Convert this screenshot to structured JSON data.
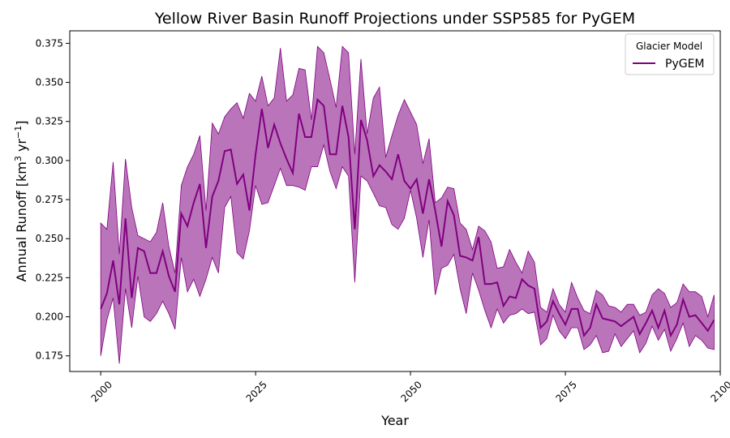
{
  "chart_data": {
    "type": "line",
    "title": "Yellow River Basin Runoff Projections under SSP585 for PyGEM",
    "xlabel": "Year",
    "ylabel_main": "Annual Runoff [km",
    "ylabel_sup1": "3",
    "ylabel_mid": " yr",
    "ylabel_sup2": "−1",
    "ylabel_end": "]",
    "xlim": [
      1995,
      2100
    ],
    "ylim": [
      0.165,
      0.383
    ],
    "x_ticks": [
      2000,
      2025,
      2050,
      2075,
      2100
    ],
    "y_ticks": [
      0.175,
      0.2,
      0.225,
      0.25,
      0.275,
      0.3,
      0.325,
      0.35,
      0.375
    ],
    "y_tick_labels": [
      "0.175",
      "0.200",
      "0.225",
      "0.250",
      "0.275",
      "0.300",
      "0.325",
      "0.350",
      "0.375"
    ],
    "grid": false,
    "legend": {
      "title": "Glacier Model",
      "placement": "top-right",
      "entries": [
        "PyGEM"
      ]
    },
    "series": [
      {
        "name": "PyGEM",
        "color": "#800080",
        "band_color": "#a040a0",
        "x": [
          2000,
          2001,
          2002,
          2003,
          2004,
          2005,
          2006,
          2007,
          2008,
          2009,
          2010,
          2011,
          2012,
          2013,
          2014,
          2015,
          2016,
          2017,
          2018,
          2019,
          2020,
          2021,
          2022,
          2023,
          2024,
          2025,
          2026,
          2027,
          2028,
          2029,
          2030,
          2031,
          2032,
          2033,
          2034,
          2035,
          2036,
          2037,
          2038,
          2039,
          2040,
          2041,
          2042,
          2043,
          2044,
          2045,
          2046,
          2047,
          2048,
          2049,
          2050,
          2051,
          2052,
          2053,
          2054,
          2055,
          2056,
          2057,
          2058,
          2059,
          2060,
          2061,
          2062,
          2063,
          2064,
          2065,
          2066,
          2067,
          2068,
          2069,
          2070,
          2071,
          2072,
          2073,
          2074,
          2075,
          2076,
          2077,
          2078,
          2079,
          2080,
          2081,
          2082,
          2083,
          2084,
          2085,
          2086,
          2087,
          2088,
          2089,
          2090,
          2091,
          2092,
          2093,
          2094,
          2095,
          2096,
          2097,
          2098,
          2099
        ],
        "mean": [
          0.205,
          0.215,
          0.236,
          0.208,
          0.263,
          0.212,
          0.244,
          0.242,
          0.228,
          0.228,
          0.242,
          0.226,
          0.216,
          0.266,
          0.258,
          0.273,
          0.285,
          0.244,
          0.277,
          0.287,
          0.306,
          0.307,
          0.285,
          0.291,
          0.268,
          0.304,
          0.333,
          0.308,
          0.323,
          0.311,
          0.301,
          0.292,
          0.33,
          0.315,
          0.315,
          0.339,
          0.335,
          0.304,
          0.304,
          0.335,
          0.315,
          0.256,
          0.326,
          0.313,
          0.29,
          0.297,
          0.293,
          0.288,
          0.304,
          0.287,
          0.282,
          0.288,
          0.266,
          0.288,
          0.268,
          0.245,
          0.274,
          0.265,
          0.239,
          0.238,
          0.236,
          0.251,
          0.221,
          0.221,
          0.222,
          0.207,
          0.213,
          0.212,
          0.224,
          0.22,
          0.218,
          0.193,
          0.197,
          0.21,
          0.202,
          0.195,
          0.205,
          0.205,
          0.188,
          0.193,
          0.208,
          0.199,
          0.198,
          0.197,
          0.194,
          0.197,
          0.2,
          0.189,
          0.196,
          0.204,
          0.193,
          0.204,
          0.188,
          0.195,
          0.211,
          0.2,
          0.201,
          0.196,
          0.191,
          0.198
        ],
        "lower": [
          0.175,
          0.198,
          0.212,
          0.17,
          0.218,
          0.193,
          0.226,
          0.2,
          0.197,
          0.202,
          0.21,
          0.202,
          0.192,
          0.238,
          0.216,
          0.224,
          0.213,
          0.224,
          0.238,
          0.228,
          0.27,
          0.277,
          0.241,
          0.237,
          0.255,
          0.284,
          0.272,
          0.273,
          0.284,
          0.295,
          0.284,
          0.284,
          0.283,
          0.281,
          0.296,
          0.296,
          0.31,
          0.293,
          0.282,
          0.296,
          0.29,
          0.222,
          0.29,
          0.287,
          0.279,
          0.271,
          0.27,
          0.259,
          0.256,
          0.263,
          0.281,
          0.263,
          0.238,
          0.262,
          0.214,
          0.231,
          0.233,
          0.24,
          0.218,
          0.202,
          0.228,
          0.217,
          0.204,
          0.193,
          0.205,
          0.196,
          0.201,
          0.202,
          0.205,
          0.202,
          0.203,
          0.182,
          0.186,
          0.201,
          0.191,
          0.186,
          0.193,
          0.193,
          0.179,
          0.182,
          0.188,
          0.177,
          0.178,
          0.189,
          0.181,
          0.186,
          0.191,
          0.177,
          0.183,
          0.194,
          0.185,
          0.192,
          0.178,
          0.186,
          0.196,
          0.181,
          0.188,
          0.185,
          0.18,
          0.179
        ],
        "upper": [
          0.26,
          0.256,
          0.299,
          0.24,
          0.301,
          0.27,
          0.252,
          0.25,
          0.248,
          0.254,
          0.273,
          0.245,
          0.228,
          0.284,
          0.296,
          0.304,
          0.316,
          0.268,
          0.324,
          0.317,
          0.328,
          0.333,
          0.337,
          0.327,
          0.343,
          0.338,
          0.354,
          0.335,
          0.34,
          0.372,
          0.338,
          0.342,
          0.359,
          0.358,
          0.326,
          0.373,
          0.369,
          0.352,
          0.334,
          0.373,
          0.369,
          0.304,
          0.365,
          0.317,
          0.34,
          0.347,
          0.302,
          0.316,
          0.329,
          0.339,
          0.331,
          0.323,
          0.298,
          0.314,
          0.273,
          0.276,
          0.283,
          0.282,
          0.26,
          0.256,
          0.243,
          0.258,
          0.255,
          0.248,
          0.231,
          0.232,
          0.243,
          0.235,
          0.228,
          0.242,
          0.235,
          0.206,
          0.203,
          0.218,
          0.208,
          0.203,
          0.222,
          0.212,
          0.204,
          0.202,
          0.217,
          0.214,
          0.207,
          0.206,
          0.203,
          0.208,
          0.208,
          0.201,
          0.203,
          0.214,
          0.218,
          0.215,
          0.206,
          0.209,
          0.221,
          0.216,
          0.216,
          0.213,
          0.2,
          0.214
        ]
      }
    ]
  }
}
